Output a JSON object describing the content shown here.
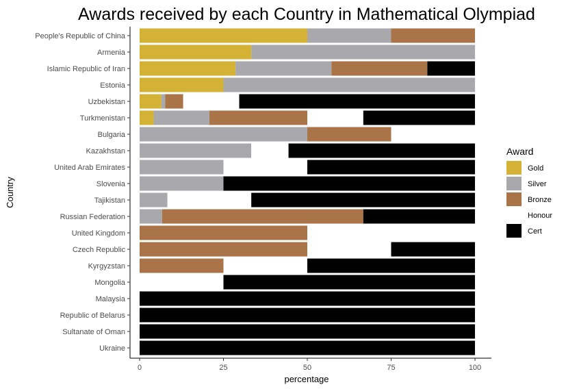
{
  "chart_data": {
    "type": "bar",
    "orientation": "horizontal",
    "stacked": true,
    "title": "Awards received by each Country in Mathematical Olympiad",
    "xlabel": "percentage",
    "ylabel": "Country",
    "xlim": [
      0,
      100
    ],
    "xticks": [
      0,
      25,
      50,
      75,
      100
    ],
    "grid": false,
    "legend": {
      "title": "Award",
      "position": "right"
    },
    "series": [
      {
        "name": "Gold",
        "color": "#d4b235"
      },
      {
        "name": "Silver",
        "color": "#a9a8ad"
      },
      {
        "name": "Bronze",
        "color": "#a97548"
      },
      {
        "name": "Honour",
        "color": "#ffffff"
      },
      {
        "name": "Cert",
        "color": "#000000"
      }
    ],
    "categories": [
      "People's Republic of China",
      "Armenia",
      "Islamic Republic of Iran",
      "Estonia",
      "Uzbekistan",
      "Turkmenistan",
      "Bulgaria",
      "Kazakhstan",
      "United Arab Emirates",
      "Slovenia",
      "Tajikistan",
      "Russian Federation",
      "United Kingdom",
      "Czech Republic",
      "Kyrgyzstan",
      "Mongolia",
      "Malaysia",
      "Republic of Belarus",
      "Sultanate of Oman",
      "Ukraine"
    ],
    "values": {
      "Gold": [
        50,
        33.3,
        28.6,
        25,
        6.5,
        4.2,
        0,
        0,
        0,
        0,
        0,
        0,
        0,
        0,
        0,
        0,
        0,
        0,
        0,
        0
      ],
      "Silver": [
        25,
        66.7,
        28.6,
        75,
        1.1,
        16.6,
        50,
        33.3,
        25,
        25,
        8.3,
        6.7,
        0,
        0,
        0,
        0,
        0,
        0,
        0,
        0
      ],
      "Bronze": [
        25,
        0,
        28.6,
        0,
        5.4,
        29.2,
        25,
        0,
        0,
        0,
        0,
        60,
        50,
        50,
        25,
        0,
        0,
        0,
        0,
        0
      ],
      "Honour": [
        0,
        0,
        0,
        0,
        16.7,
        16.7,
        25,
        11.1,
        25,
        0,
        25,
        0,
        50,
        25,
        25,
        25,
        0,
        0,
        0,
        0
      ],
      "Cert": [
        0,
        0,
        14.2,
        0,
        70.3,
        33.3,
        0,
        55.6,
        50,
        75,
        66.7,
        33.3,
        0,
        25,
        50,
        75,
        100,
        100,
        100,
        100
      ]
    }
  }
}
